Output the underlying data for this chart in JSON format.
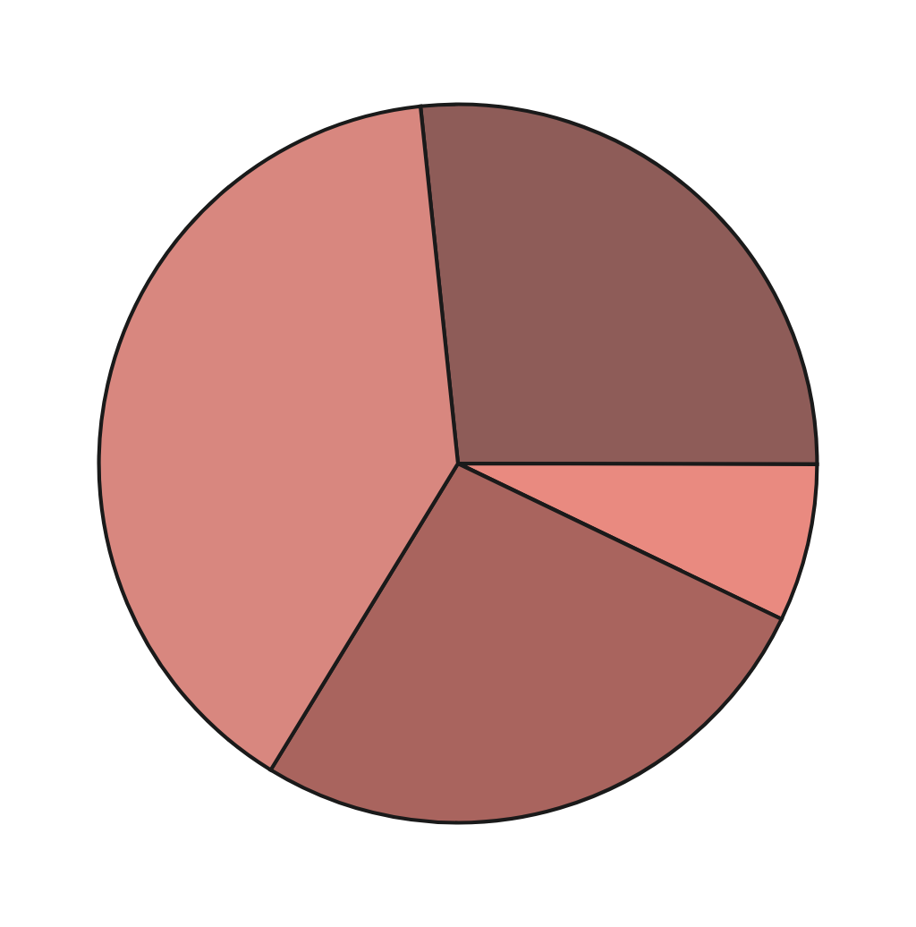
{
  "chart_data": {
    "type": "pie",
    "categories": [
      null,
      null,
      null,
      null
    ],
    "values": [
      26.7,
      7.1,
      26.6,
      39.6
    ],
    "colors": [
      "#8e5c58",
      "#e98a80",
      "#a9645e",
      "#d8877f"
    ]
  }
}
